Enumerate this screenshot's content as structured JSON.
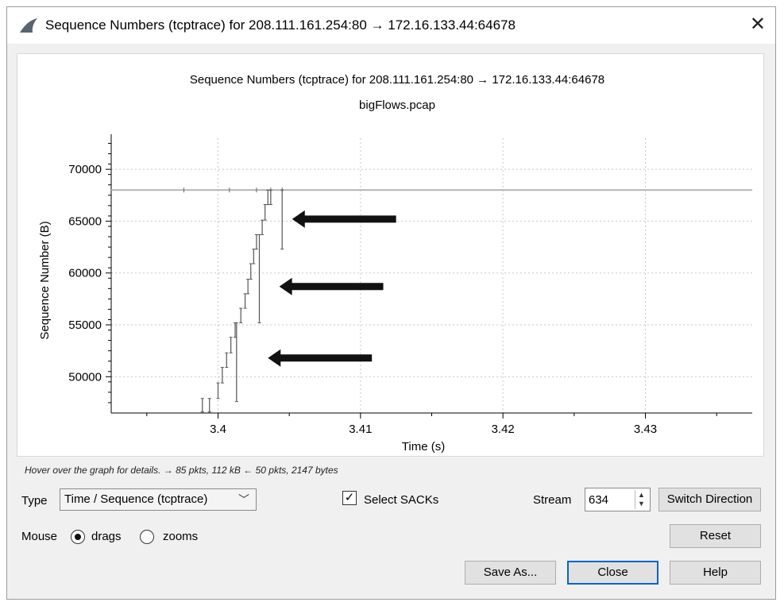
{
  "window": {
    "title": "Sequence Numbers (tcptrace) for 208.111.161.254:80 → 172.16.133.44:64678",
    "close_glyph": "✕",
    "app_icon": "shark-fin-icon"
  },
  "chart_data": {
    "type": "scatter",
    "title": "Sequence Numbers (tcptrace) for 208.111.161.254:80 → 172.16.133.44:64678",
    "subtitle": "bigFlows.pcap",
    "xlabel": "Time (s)",
    "ylabel": "Sequence Number (B)",
    "xlim": [
      3.3925,
      3.4375
    ],
    "ylim": [
      46500,
      73000
    ],
    "xticks": [
      3.4,
      3.41,
      3.42,
      3.43
    ],
    "xtick_labels": [
      "3.4",
      "3.41",
      "3.42",
      "3.43"
    ],
    "yticks": [
      50000,
      55000,
      60000,
      65000,
      70000
    ],
    "ytick_labels": [
      "50000",
      "55000",
      "60000",
      "65000",
      "70000"
    ],
    "grid": true,
    "receive_window_seq": 68000,
    "segments": [
      {
        "t": 3.3989,
        "s0": 46600,
        "s1": 47900
      },
      {
        "t": 3.3994,
        "s0": 46600,
        "s1": 47900
      },
      {
        "t": 3.4,
        "s0": 47900,
        "s1": 49400
      },
      {
        "t": 3.4003,
        "s0": 49400,
        "s1": 50900
      },
      {
        "t": 3.4006,
        "s0": 50900,
        "s1": 52300
      },
      {
        "t": 3.4009,
        "s0": 52300,
        "s1": 53800
      },
      {
        "t": 3.4012,
        "s0": 53800,
        "s1": 55200
      },
      {
        "t": 3.4013,
        "s0": 47600,
        "s1": 55200
      },
      {
        "t": 3.4016,
        "s0": 55200,
        "s1": 56600
      },
      {
        "t": 3.4019,
        "s0": 56600,
        "s1": 58000
      },
      {
        "t": 3.4021,
        "s0": 58000,
        "s1": 59400
      },
      {
        "t": 3.4023,
        "s0": 59400,
        "s1": 60900
      },
      {
        "t": 3.4025,
        "s0": 60900,
        "s1": 62300
      },
      {
        "t": 3.4027,
        "s0": 62300,
        "s1": 63700
      },
      {
        "t": 3.4029,
        "s0": 55200,
        "s1": 63700
      },
      {
        "t": 3.4031,
        "s0": 63700,
        "s1": 65100
      },
      {
        "t": 3.4033,
        "s0": 65100,
        "s1": 66600
      },
      {
        "t": 3.4035,
        "s0": 66600,
        "s1": 68000
      },
      {
        "t": 3.4037,
        "s0": 66600,
        "s1": 68000
      },
      {
        "t": 3.4045,
        "s0": 62300,
        "s1": 68000
      }
    ],
    "window_ticks": [
      3.3976,
      3.4008,
      3.4027,
      3.4037,
      3.4045
    ],
    "annotations": [
      {
        "type": "arrow",
        "from": [
          3.4125,
          65200
        ],
        "to": [
          3.4052,
          65200
        ]
      },
      {
        "type": "arrow",
        "from": [
          3.4116,
          58700
        ],
        "to": [
          3.4043,
          58700
        ]
      },
      {
        "type": "arrow",
        "from": [
          3.4108,
          51800
        ],
        "to": [
          3.4035,
          51800
        ]
      }
    ]
  },
  "status": {
    "hint": "Hover over the graph for details. → 85 pkts, 112 kB ← 50 pkts, 2147 bytes"
  },
  "controls": {
    "type_label": "Type",
    "type_value": "Time / Sequence (tcptrace)",
    "select_sacks_label": "Select SACKs",
    "select_sacks_checked": true,
    "stream_label": "Stream",
    "stream_value": "634",
    "switch_direction": "Switch Direction",
    "mouse_label": "Mouse",
    "drags_label": "drags",
    "zooms_label": "zooms",
    "mouse_mode": "drags",
    "reset": "Reset",
    "save_as": "Save As...",
    "close": "Close",
    "help": "Help"
  }
}
